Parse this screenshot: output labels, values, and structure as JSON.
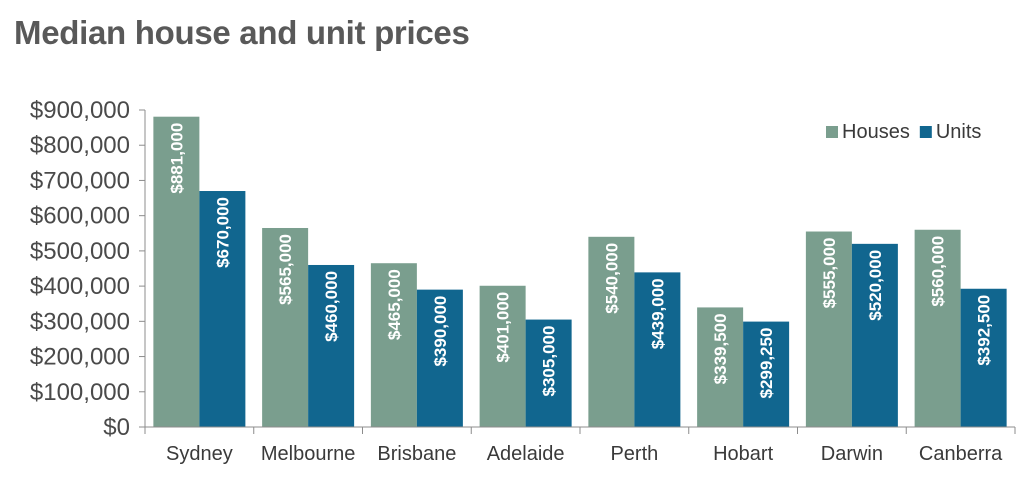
{
  "chart_data": {
    "type": "bar",
    "title": "Median house and unit prices",
    "categories": [
      "Sydney",
      "Melbourne",
      "Brisbane",
      "Adelaide",
      "Perth",
      "Hobart",
      "Darwin",
      "Canberra"
    ],
    "series": [
      {
        "name": "Houses",
        "color": "#7a9e8e",
        "values": [
          881000,
          565000,
          465000,
          401000,
          540000,
          339500,
          555000,
          560000
        ],
        "labels": [
          "$881,000",
          "$565,000",
          "$465,000",
          "$401,000",
          "$540,000",
          "$339,500",
          "$555,000",
          "$560,000"
        ]
      },
      {
        "name": "Units",
        "color": "#11668f",
        "values": [
          670000,
          460000,
          390000,
          305000,
          439000,
          299250,
          520000,
          392500
        ],
        "labels": [
          "$670,000",
          "$460,000",
          "$390,000",
          "$305,000",
          "$439,000",
          "$299,250",
          "$520,000",
          "$392,500"
        ]
      }
    ],
    "ylim": [
      0,
      900000
    ],
    "yticks": [
      0,
      100000,
      200000,
      300000,
      400000,
      500000,
      600000,
      700000,
      800000,
      900000
    ],
    "ytick_labels": [
      "$0",
      "$100,000",
      "$200,000",
      "$300,000",
      "$400,000",
      "$500,000",
      "$600,000",
      "$700,000",
      "$800,000",
      "$900,000"
    ],
    "grid": false,
    "legend": "top-right"
  }
}
